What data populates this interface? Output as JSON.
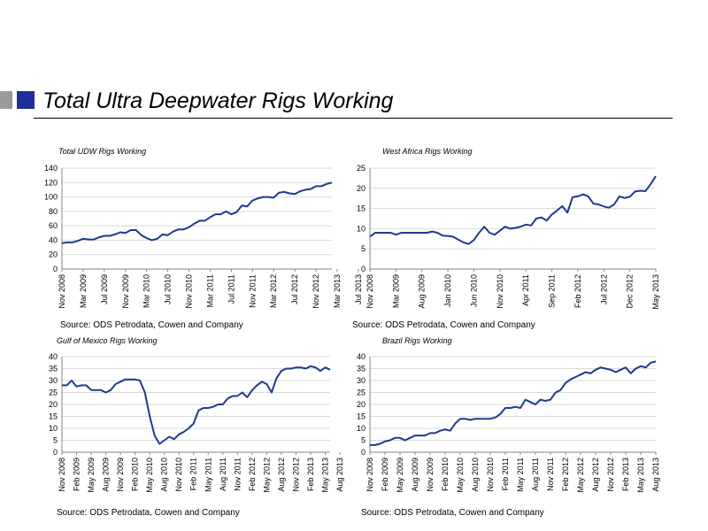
{
  "slide": {
    "title": "Total Ultra Deepwater Rigs Working",
    "accent_colors": {
      "gray": "#9a9a9a",
      "blue": "#1f2f99"
    }
  },
  "charts": [
    {
      "source": "Source: ODS Petrodata, Cowen and Company"
    },
    {
      "source": "Source: ODS Petrodata, Cowen and Company"
    },
    {
      "source": "Source: ODS Petrodata, Cowen and Company"
    },
    {
      "source": "Source: ODS Petrodata, Cowen and Company"
    }
  ],
  "chart_data": [
    {
      "type": "line",
      "title": "Total UDW Rigs Working",
      "line_color": "#1f3a8f",
      "grid": true,
      "ylim": [
        0,
        140
      ],
      "yticks": [
        0,
        20,
        40,
        60,
        80,
        100,
        120,
        140
      ],
      "x_start": "2008-11",
      "xtick_labels": [
        "Nov 2008",
        "Mar 2009",
        "Jul 2009",
        "Nov 2009",
        "Mar 2010",
        "Jul 2010",
        "Nov 2010",
        "Mar 2011",
        "Jul 2011",
        "Nov 2011",
        "Mar 2012",
        "Jul 2012",
        "Nov 2012",
        "Mar 2013",
        "Jul 2013"
      ],
      "xtick_step": 4,
      "values": [
        36,
        37,
        37,
        39,
        42,
        41,
        41,
        44,
        46,
        46,
        48,
        51,
        50,
        54,
        54,
        47,
        43,
        40,
        42,
        48,
        47,
        52,
        55,
        55,
        58,
        63,
        67,
        67,
        72,
        76,
        76,
        80,
        76,
        79,
        88,
        87,
        95,
        98,
        100,
        100,
        99,
        106,
        107,
        105,
        104,
        108,
        110,
        111,
        115,
        115,
        118,
        120
      ]
    },
    {
      "type": "line",
      "title": "West Africa Rigs Working",
      "line_color": "#1f3a8f",
      "grid": true,
      "ylim": [
        0,
        25
      ],
      "yticks": [
        0,
        5,
        10,
        15,
        20,
        25
      ],
      "x_start": "2008-11",
      "xtick_labels": [
        "Nov 2008",
        "Mar 2009",
        "Aug 2009",
        "Jan 2010",
        "Jun 2010",
        "Nov 2010",
        "Apr 2011",
        "Sep 2011",
        "Feb 2012",
        "Jul 2012",
        "Dec 2012",
        "May 2013"
      ],
      "xtick_step": 5,
      "values": [
        8,
        9,
        9,
        9,
        9,
        8.5,
        9,
        9,
        9,
        9,
        9,
        9,
        9.3,
        9,
        8.3,
        8.2,
        8,
        7.3,
        6.6,
        6.2,
        7.2,
        9,
        10.5,
        9,
        8.5,
        9.5,
        10.5,
        10,
        10.2,
        10.5,
        11,
        10.8,
        12.5,
        12.8,
        12,
        13.5,
        14.5,
        15.6,
        14,
        17.8,
        18,
        18.5,
        18,
        16.2,
        16,
        15.5,
        15.2,
        16,
        18,
        17.6,
        17.9,
        19.2,
        19.4,
        19.3,
        21,
        23
      ]
    },
    {
      "type": "line",
      "title": "Gulf of Mexico Rigs Working",
      "line_color": "#1f3a8f",
      "grid": true,
      "ylim": [
        0,
        40
      ],
      "yticks": [
        0,
        5,
        10,
        15,
        20,
        25,
        30,
        35,
        40
      ],
      "x_start": "2008-11",
      "xtick_labels": [
        "Nov 2008",
        "Feb 2009",
        "May 2009",
        "Aug 2009",
        "Nov 2009",
        "Feb 2010",
        "May 2010",
        "Aug 2010",
        "Nov 2010",
        "Feb 2011",
        "May 2011",
        "Aug 2011",
        "Nov 2011",
        "Feb 2012",
        "May 2012",
        "Aug 2012",
        "Nov 2012",
        "Feb 2013",
        "May 2013",
        "Aug 2013"
      ],
      "xtick_step": 3,
      "values": [
        28,
        28,
        30,
        27.5,
        28,
        28,
        26,
        26,
        26,
        25,
        26,
        28.5,
        29.5,
        30.5,
        30.5,
        30.5,
        30,
        25,
        15,
        7,
        3.5,
        5,
        6.5,
        5.5,
        7.5,
        8.5,
        10,
        12,
        17.5,
        18.5,
        18.5,
        19,
        20,
        20,
        22.5,
        23.5,
        23.5,
        25,
        23,
        26,
        28,
        29.5,
        28.5,
        25,
        31,
        34,
        35,
        35,
        35.5,
        35.5,
        35,
        36,
        35.5,
        34,
        35.5,
        34.5
      ]
    },
    {
      "type": "line",
      "title": "Brazil Rigs Working",
      "line_color": "#1f3a8f",
      "grid": true,
      "ylim": [
        0,
        40
      ],
      "yticks": [
        0,
        5,
        10,
        15,
        20,
        25,
        30,
        35,
        40
      ],
      "x_start": "2008-11",
      "xtick_labels": [
        "Nov 2008",
        "Feb 2009",
        "May 2009",
        "Aug 2009",
        "Nov 2009",
        "Feb 2010",
        "May 2010",
        "Aug 2010",
        "Nov 2010",
        "Feb 2011",
        "May 2011",
        "Aug 2011",
        "Nov 2011",
        "Feb 2012",
        "May 2012",
        "Aug 2012",
        "Nov 2012",
        "Feb 2013",
        "May 2013",
        "Aug 2013"
      ],
      "xtick_step": 3,
      "values": [
        3,
        3,
        3.5,
        4.5,
        5,
        6,
        6,
        5,
        6,
        7,
        7,
        7,
        8,
        8,
        9,
        9.5,
        9,
        12,
        14,
        14,
        13.5,
        14,
        14,
        14,
        14,
        14.5,
        16,
        18.5,
        18.5,
        19,
        18.5,
        22,
        21,
        20,
        22,
        21.5,
        22,
        25,
        26,
        29,
        30.5,
        31.5,
        32.5,
        33.5,
        33,
        34.5,
        35.5,
        35,
        34.5,
        33.5,
        34.5,
        35.5,
        33,
        35,
        36,
        35.5,
        37.5,
        38
      ]
    }
  ]
}
